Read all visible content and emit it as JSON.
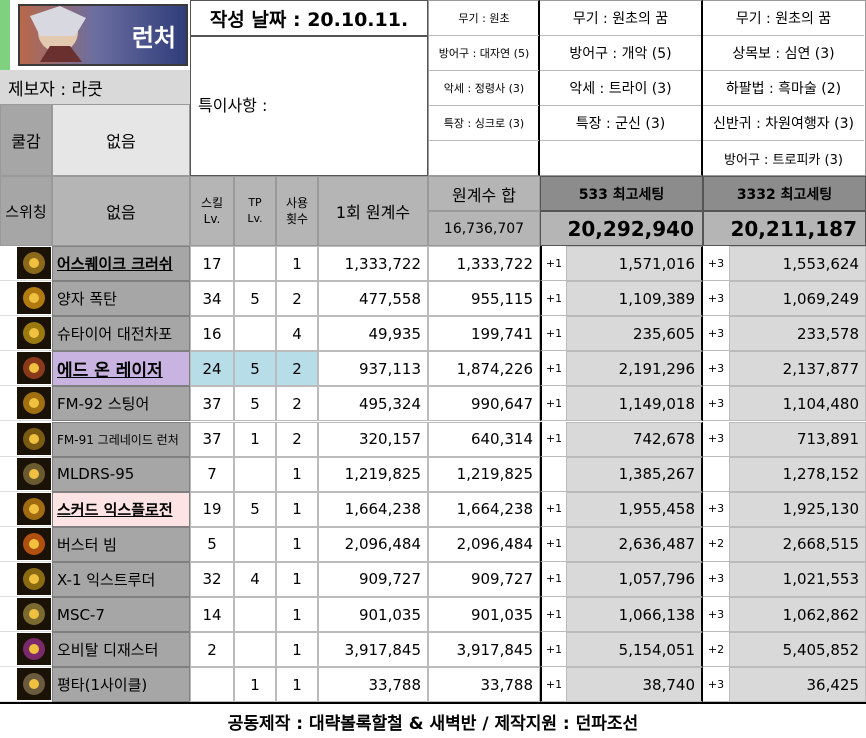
{
  "header": {
    "banner_text": "런처",
    "date_label": "작성 날짜 : 20.10.11.",
    "reporter": "제보자 : 라쿳",
    "special_notes_label": "특이사항 :",
    "creature_label": "쿨감",
    "creature_value": "없음",
    "switching_label": "스위칭",
    "switching_value": "없음"
  },
  "set_columns": {
    "col1": [
      "무기 : 원초",
      "방어구 : 대자연 (5)",
      "악세 : 정령사 (3)",
      "특장 : 싱크로 (3)"
    ],
    "col2": [
      "무기 : 원초의 꿈",
      "방어구 : 개악 (5)",
      "악세 : 트라이 (3)",
      "특장 : 군신 (3)"
    ],
    "col3": [
      "무기 : 원초의 꿈",
      "상목보 : 심연 (3)",
      "하팔법 : 흑마술 (2)",
      "신반귀 : 차원여행자 (3)",
      "방어구 : 트로피카 (3)"
    ]
  },
  "table_header": {
    "skill_lv": "스킬 Lv.",
    "tp_lv": "TP Lv.",
    "use_count": "사용 횟수",
    "once_dmg": "1회 원계수",
    "sum_label": "원계수 합",
    "sum_value": "16,736,707",
    "set1_label": "533 최고세팅",
    "set1_total": "20,292,940",
    "set2_label": "3332 최고세팅",
    "set2_total": "20,211,187"
  },
  "rows": [
    {
      "icon": "earthquake-icon",
      "name": "어스퀘이크 크러쉬",
      "lv": "17",
      "tp": "",
      "cnt": "1",
      "once": "1,333,722",
      "sum": "1,333,722",
      "p1": "+1",
      "s1": "1,571,016",
      "p2": "+3",
      "s2": "1,553,624",
      "style": "underline"
    },
    {
      "icon": "quantum-bomb-icon",
      "name": "양자 폭탄",
      "lv": "34",
      "tp": "5",
      "cnt": "2",
      "once": "477,558",
      "sum": "955,115",
      "p1": "+1",
      "s1": "1,109,389",
      "p2": "+3",
      "s2": "1,069,249",
      "style": ""
    },
    {
      "icon": "steyr-cannon-icon",
      "name": "슈타이어 대전차포",
      "lv": "16",
      "tp": "",
      "cnt": "4",
      "once": "49,935",
      "sum": "199,741",
      "p1": "+1",
      "s1": "235,605",
      "p2": "+3",
      "s2": "233,578",
      "style": ""
    },
    {
      "icon": "ed-laser-icon",
      "name": "에드 온 레이저",
      "lv": "24",
      "tp": "5",
      "cnt": "2",
      "once": "937,113",
      "sum": "1,874,226",
      "p1": "+1",
      "s1": "2,191,296",
      "p2": "+3",
      "s2": "2,137,877",
      "style": "purple"
    },
    {
      "icon": "stinger-icon",
      "name": "FM-92 스팅어",
      "lv": "37",
      "tp": "5",
      "cnt": "2",
      "once": "495,324",
      "sum": "990,647",
      "p1": "+1",
      "s1": "1,149,018",
      "p2": "+3",
      "s2": "1,104,480",
      "style": ""
    },
    {
      "icon": "grenade-launcher-icon",
      "name": "FM-91 그레네이드 런처",
      "lv": "37",
      "tp": "1",
      "cnt": "2",
      "once": "320,157",
      "sum": "640,314",
      "p1": "+1",
      "s1": "742,678",
      "p2": "+3",
      "s2": "713,891",
      "style": "small"
    },
    {
      "icon": "mldrs-icon",
      "name": "MLDRS-95",
      "lv": "7",
      "tp": "",
      "cnt": "1",
      "once": "1,219,825",
      "sum": "1,219,825",
      "p1": "",
      "s1": "1,385,267",
      "p2": "",
      "s2": "1,278,152",
      "style": ""
    },
    {
      "icon": "squad-explosion-icon",
      "name": "스커드 익스플로전",
      "lv": "19",
      "tp": "5",
      "cnt": "1",
      "once": "1,664,238",
      "sum": "1,664,238",
      "p1": "+1",
      "s1": "1,955,458",
      "p2": "+3",
      "s2": "1,925,130",
      "style": "pink"
    },
    {
      "icon": "buster-beam-icon",
      "name": "버스터 빔",
      "lv": "5",
      "tp": "",
      "cnt": "1",
      "once": "2,096,484",
      "sum": "2,096,484",
      "p1": "+1",
      "s1": "2,636,487",
      "p2": "+2",
      "s2": "2,668,515",
      "style": ""
    },
    {
      "icon": "extruder-icon",
      "name": "X-1 익스트루더",
      "lv": "32",
      "tp": "4",
      "cnt": "1",
      "once": "909,727",
      "sum": "909,727",
      "p1": "+1",
      "s1": "1,057,796",
      "p2": "+3",
      "s2": "1,021,553",
      "style": ""
    },
    {
      "icon": "msc7-icon",
      "name": "MSC-7",
      "lv": "14",
      "tp": "",
      "cnt": "1",
      "once": "901,035",
      "sum": "901,035",
      "p1": "+1",
      "s1": "1,066,138",
      "p2": "+3",
      "s2": "1,062,862",
      "style": ""
    },
    {
      "icon": "orbital-disaster-icon",
      "name": "오비탈 디재스터",
      "lv": "2",
      "tp": "",
      "cnt": "1",
      "once": "3,917,845",
      "sum": "3,917,845",
      "p1": "+1",
      "s1": "5,154,051",
      "p2": "+2",
      "s2": "5,405,852",
      "style": ""
    },
    {
      "icon": "basic-attack-icon",
      "name": "평타(1사이클)",
      "lv": "",
      "tp": "1",
      "cnt": "1",
      "once": "33,788",
      "sum": "33,788",
      "p1": "+1",
      "s1": "38,740",
      "p2": "+3",
      "s2": "36,425",
      "style": ""
    }
  ],
  "footer": "공동제작 : 대략볼록할철 & 새벽반 / 제작지원 : 던파조선",
  "colors": {
    "accent_green": "#7fd17f",
    "purple_cell": "#c9b3e0",
    "blue_cell": "#b7dde8",
    "pink_cell": "#fde3e3",
    "gray": "#a6a6a6"
  }
}
